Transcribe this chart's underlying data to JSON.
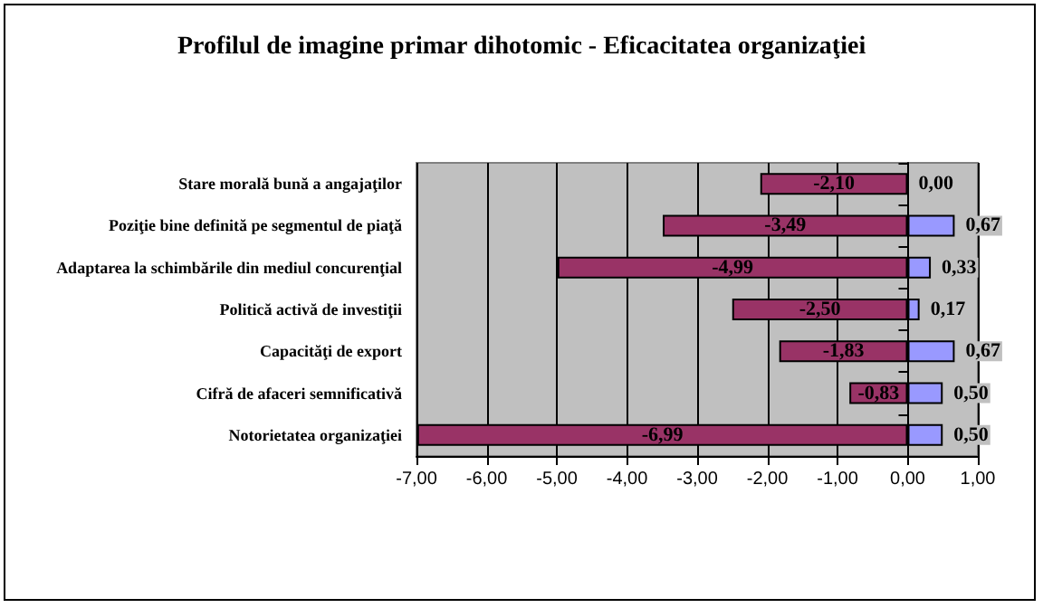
{
  "chart_data": {
    "type": "bar",
    "orientation": "horizontal",
    "stacked": true,
    "title": "Profilul de imagine primar dihotomic - Eficacitatea organizaţiei",
    "categories": [
      "Stare morală bună a angajaţilor",
      "Poziţie bine definită pe segmentul de piaţă",
      "Adaptarea la schimbările din mediul concurenţial",
      "Politică activă de investiţii",
      "Capacităţi de export",
      "Cifră de afaceri semnificativă",
      "Notorietatea organizaţiei"
    ],
    "series": [
      {
        "color": "#993366",
        "values": [
          -2.1,
          -3.49,
          -4.99,
          -2.5,
          -1.83,
          -0.83,
          -6.99
        ],
        "value_labels": [
          "-2,10",
          "-3,49",
          "-4,99",
          "-2,50",
          "-1,83",
          "-0,83",
          "-6,99"
        ]
      },
      {
        "color": "#9999ff",
        "values": [
          0.0,
          0.67,
          0.33,
          0.17,
          0.67,
          0.5,
          0.5
        ],
        "value_labels": [
          "0,00",
          "0,67",
          "0,33",
          "0,17",
          "0,67",
          "0,50",
          "0,50"
        ]
      }
    ],
    "xlim": [
      -7,
      1
    ],
    "xticks": [
      {
        "value": -7,
        "label": "-7,00"
      },
      {
        "value": -6,
        "label": "-6,00"
      },
      {
        "value": -5,
        "label": "-5,00"
      },
      {
        "value": -4,
        "label": "-4,00"
      },
      {
        "value": -3,
        "label": "-3,00"
      },
      {
        "value": -2,
        "label": "-2,00"
      },
      {
        "value": -1,
        "label": "-1,00"
      },
      {
        "value": 0,
        "label": "0,00"
      },
      {
        "value": 1,
        "label": "1,00"
      }
    ],
    "grid": "x"
  }
}
